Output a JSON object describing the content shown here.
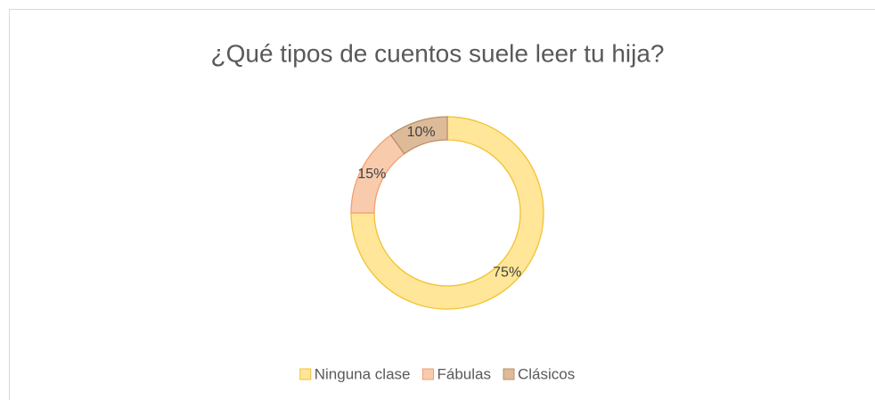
{
  "chart_data": {
    "type": "donut",
    "title": "¿Qué tipos de cuentos suele leer tu hija?",
    "categories": [
      "Ninguna clase",
      "Fábulas",
      "Clásicos"
    ],
    "values": [
      75,
      15,
      10
    ],
    "value_labels": [
      "75%",
      "15%",
      "10%"
    ],
    "colors": [
      "#FFE699",
      "#F8CBAD",
      "#DDBB99"
    ],
    "legend": "bottom"
  }
}
